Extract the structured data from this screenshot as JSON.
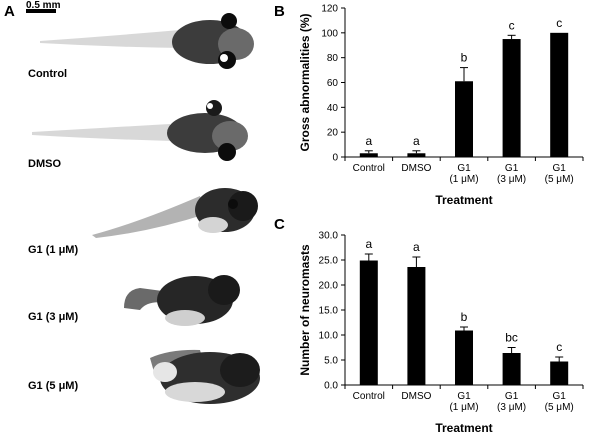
{
  "panel_a": {
    "letter": "A",
    "scale_bar_label": "0.5 mm",
    "labels": [
      "Control",
      "DMSO",
      "G1 (1 μM)",
      "G1 (3 μM)",
      "G1 (5 μM)"
    ]
  },
  "chart_data": [
    {
      "panel": "B",
      "type": "bar",
      "categories": [
        [
          "Control"
        ],
        [
          "DMSO"
        ],
        [
          "G1",
          "(1 μM)"
        ],
        [
          "G1",
          "(3 μM)"
        ],
        [
          "G1",
          "(5 μM)"
        ]
      ],
      "values": [
        3,
        3,
        61,
        95,
        100
      ],
      "errors": [
        2,
        2,
        11,
        3,
        0
      ],
      "significance": [
        "a",
        "a",
        "b",
        "c",
        "c"
      ],
      "xlabel": "Treatment",
      "ylabel": "Gross abnormalities (%)",
      "ylim": [
        0,
        120
      ],
      "yticks": [
        "0",
        "20",
        "40",
        "60",
        "80",
        "100",
        "120"
      ],
      "grid": false
    },
    {
      "panel": "C",
      "type": "bar",
      "categories": [
        [
          "Control"
        ],
        [
          "DMSO"
        ],
        [
          "G1",
          "(1 μM)"
        ],
        [
          "G1",
          "(3 μM)"
        ],
        [
          "G1",
          "(5 μM)"
        ]
      ],
      "values": [
        24.9,
        23.6,
        10.9,
        6.4,
        4.7
      ],
      "errors": [
        1.3,
        2.0,
        0.7,
        1.1,
        0.9
      ],
      "significance": [
        "a",
        "a",
        "b",
        "bc",
        "c"
      ],
      "xlabel": "Treatment",
      "ylabel": "Number of neuromasts",
      "ylim": [
        0,
        30
      ],
      "yticks": [
        "0.0",
        "5.0",
        "10.0",
        "15.0",
        "20.0",
        "25.0",
        "30.0"
      ],
      "grid": false
    }
  ]
}
